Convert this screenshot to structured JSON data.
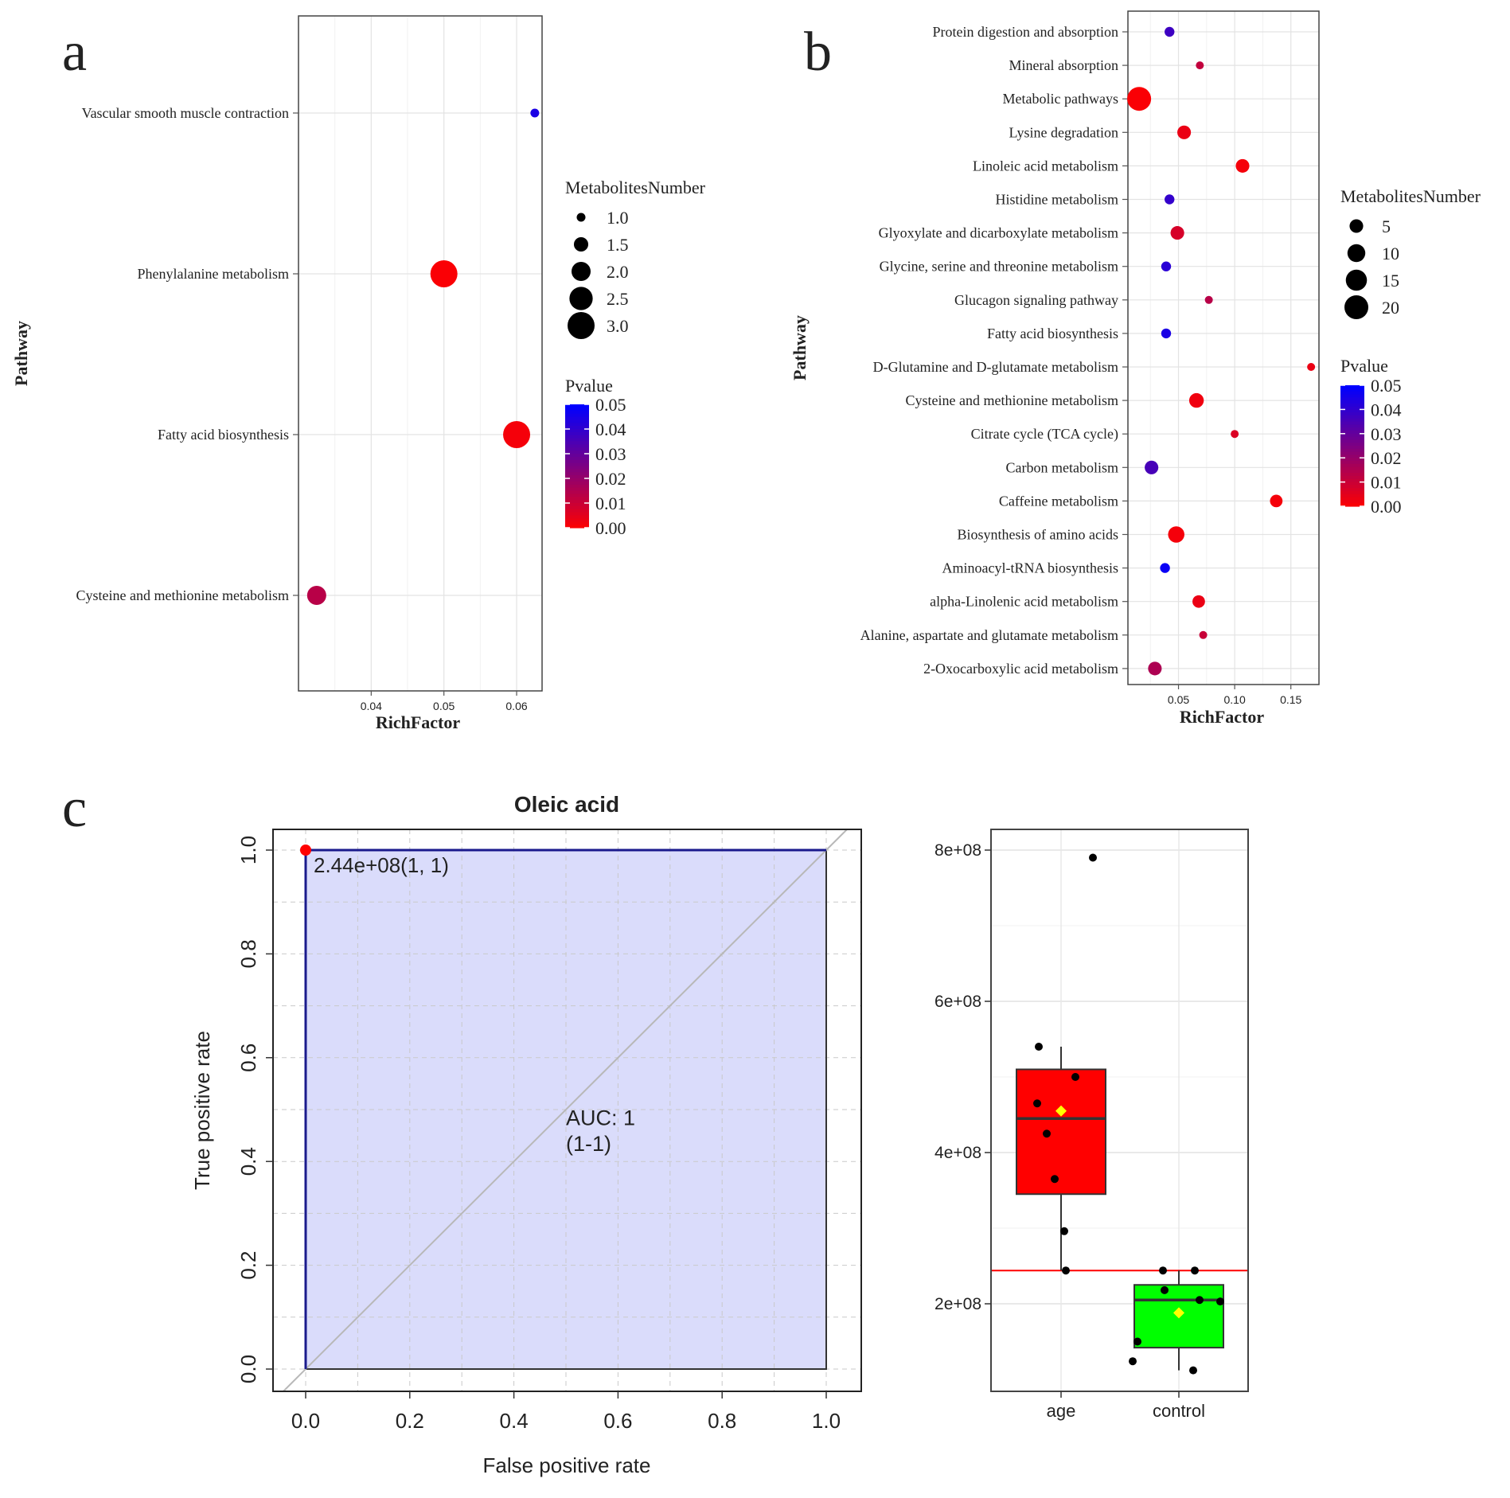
{
  "panel_letters": {
    "a": "a",
    "b": "b",
    "c": "c"
  },
  "chart_data": [
    {
      "id": "panel-a",
      "type": "scatter",
      "title": "",
      "xlabel": "RichFactor",
      "ylabel": "Pathway",
      "xlim": [
        0.03,
        0.0635
      ],
      "xticks": [
        0.04,
        0.05,
        0.06
      ],
      "xtick_labels": [
        "0.04",
        "0.05",
        "0.06"
      ],
      "pathways": [
        "Vascular smooth muscle contraction",
        "Phenylalanine metabolism",
        "Fatty acid biosynthesis",
        "Cysteine and methionine metabolism"
      ],
      "points": [
        {
          "pathway": "Vascular smooth muscle contraction",
          "rich_factor": 0.0625,
          "metabolites": 1,
          "pvalue": 0.045
        },
        {
          "pathway": "Phenylalanine metabolism",
          "rich_factor": 0.05,
          "metabolites": 3,
          "pvalue": 0.001
        },
        {
          "pathway": "Fatty acid biosynthesis",
          "rich_factor": 0.06,
          "metabolites": 3,
          "pvalue": 0.002
        },
        {
          "pathway": "Cysteine and methionine metabolism",
          "rich_factor": 0.0325,
          "metabolites": 2,
          "pvalue": 0.014
        }
      ],
      "size_legend": {
        "title": "MetabolitesNumber",
        "values": [
          1.0,
          1.5,
          2.0,
          2.5,
          3.0
        ],
        "labels": [
          "1.0",
          "1.5",
          "2.0",
          "2.5",
          "3.0"
        ],
        "min": 1,
        "max": 3
      },
      "color_legend": {
        "title": "Pvalue",
        "ticks": [
          0.05,
          0.04,
          0.03,
          0.02,
          0.01,
          0.0
        ],
        "labels": [
          "0.05",
          "0.04",
          "0.03",
          "0.02",
          "0.01",
          "0.00"
        ],
        "low_color": "#ff0000",
        "high_color": "#0000ff",
        "max": 0.05
      }
    },
    {
      "id": "panel-b",
      "type": "scatter",
      "title": "",
      "xlabel": "RichFactor",
      "ylabel": "Pathway",
      "xlim": [
        0.005,
        0.175
      ],
      "xticks": [
        0.05,
        0.1,
        0.15
      ],
      "xtick_labels": [
        "0.05",
        "0.10",
        "0.15"
      ],
      "pathways": [
        "Protein digestion and absorption",
        "Mineral absorption",
        "Metabolic pathways",
        "Lysine degradation",
        "Linoleic acid metabolism",
        "Histidine metabolism",
        "Glyoxylate and dicarboxylate metabolism",
        "Glycine, serine and threonine metabolism",
        "Glucagon signaling pathway",
        "Fatty acid biosynthesis",
        "D-Glutamine and D-glutamate metabolism",
        "Cysteine and methionine metabolism",
        "Citrate cycle (TCA cycle)",
        "Carbon metabolism",
        "Caffeine metabolism",
        "Biosynthesis of amino acids",
        "Aminoacyl-tRNA biosynthesis",
        "alpha-Linolenic acid metabolism",
        "Alanine, aspartate and glutamate metabolism",
        "2-Oxocarboxylic acid metabolism"
      ],
      "points": [
        {
          "pathway": "Protein digestion and absorption",
          "rich_factor": 0.042,
          "metabolites": 2,
          "pvalue": 0.038
        },
        {
          "pathway": "Mineral absorption",
          "rich_factor": 0.069,
          "metabolites": 1,
          "pvalue": 0.012
        },
        {
          "pathway": "Metabolic pathways",
          "rich_factor": 0.015,
          "metabolites": 20,
          "pvalue": 0.001
        },
        {
          "pathway": "Lysine degradation",
          "rich_factor": 0.055,
          "metabolites": 5,
          "pvalue": 0.004
        },
        {
          "pathway": "Linoleic acid metabolism",
          "rich_factor": 0.107,
          "metabolites": 5,
          "pvalue": 0.002
        },
        {
          "pathway": "Histidine metabolism",
          "rich_factor": 0.042,
          "metabolites": 2,
          "pvalue": 0.04
        },
        {
          "pathway": "Glyoxylate and dicarboxylate metabolism",
          "rich_factor": 0.049,
          "metabolites": 5,
          "pvalue": 0.008
        },
        {
          "pathway": "Glycine, serine and threonine metabolism",
          "rich_factor": 0.039,
          "metabolites": 2,
          "pvalue": 0.042
        },
        {
          "pathway": "Glucagon signaling pathway",
          "rich_factor": 0.077,
          "metabolites": 1,
          "pvalue": 0.014
        },
        {
          "pathway": "Fatty acid biosynthesis",
          "rich_factor": 0.039,
          "metabolites": 2,
          "pvalue": 0.045
        },
        {
          "pathway": "D-Glutamine and D-glutamate metabolism",
          "rich_factor": 0.168,
          "metabolites": 1,
          "pvalue": 0.004
        },
        {
          "pathway": "Cysteine and methionine metabolism",
          "rich_factor": 0.066,
          "metabolites": 6,
          "pvalue": 0.003
        },
        {
          "pathway": "Citrate cycle (TCA cycle)",
          "rich_factor": 0.1,
          "metabolites": 1,
          "pvalue": 0.007
        },
        {
          "pathway": "Carbon metabolism",
          "rich_factor": 0.026,
          "metabolites": 5,
          "pvalue": 0.036
        },
        {
          "pathway": "Caffeine metabolism",
          "rich_factor": 0.137,
          "metabolites": 4,
          "pvalue": 0.002
        },
        {
          "pathway": "Biosynthesis of amino acids",
          "rich_factor": 0.048,
          "metabolites": 8,
          "pvalue": 0.002
        },
        {
          "pathway": "Aminoacyl-tRNA biosynthesis",
          "rich_factor": 0.038,
          "metabolites": 2,
          "pvalue": 0.048
        },
        {
          "pathway": "alpha-Linolenic acid metabolism",
          "rich_factor": 0.068,
          "metabolites": 4,
          "pvalue": 0.004
        },
        {
          "pathway": "Alanine, aspartate and glutamate metabolism",
          "rich_factor": 0.072,
          "metabolites": 1,
          "pvalue": 0.011
        },
        {
          "pathway": "2-Oxocarboxylic acid metabolism",
          "rich_factor": 0.029,
          "metabolites": 5,
          "pvalue": 0.016
        }
      ],
      "size_legend": {
        "title": "MetabolitesNumber",
        "values": [
          5,
          10,
          15,
          20
        ],
        "labels": [
          "5",
          "10",
          "15",
          "20"
        ],
        "min": 1,
        "max": 20
      },
      "color_legend": {
        "title": "Pvalue",
        "ticks": [
          0.05,
          0.04,
          0.03,
          0.02,
          0.01,
          0.0
        ],
        "labels": [
          "0.05",
          "0.04",
          "0.03",
          "0.02",
          "0.01",
          "0.00"
        ],
        "low_color": "#ff0000",
        "high_color": "#0000ff",
        "max": 0.05
      }
    },
    {
      "id": "panel-c-roc",
      "type": "line",
      "title": "Oleic acid",
      "xlabel": "False positive rate",
      "ylabel": "True positive rate",
      "xlim": [
        -0.05,
        1.065
      ],
      "ylim": [
        -0.05,
        1.04
      ],
      "xticks": [
        0.0,
        0.2,
        0.4,
        0.6,
        0.8,
        1.0
      ],
      "yticks": [
        0.0,
        0.2,
        0.4,
        0.6,
        0.8,
        1.0
      ],
      "tick_labels": [
        "0.0",
        "0.2",
        "0.4",
        "0.6",
        "0.8",
        "1.0"
      ],
      "series": [
        {
          "name": "ROC",
          "x": [
            0,
            0,
            1
          ],
          "y": [
            0,
            1,
            1
          ]
        }
      ],
      "cutoff_point": {
        "x": 0,
        "y": 1,
        "label": "2.44e+08(1, 1)"
      },
      "auc_text": "AUC: 1",
      "auc_ci_text": "(1-1)",
      "fill_color": "#dadcfb",
      "line_color": "#1a1a8c"
    },
    {
      "id": "panel-c-box",
      "type": "box",
      "title": "",
      "categories": [
        "age",
        "control"
      ],
      "ylim": [
        80000000,
        830000000
      ],
      "yticks": [
        200000000,
        400000000,
        600000000,
        800000000
      ],
      "ytick_labels": [
        "2e+08",
        "4e+08",
        "6e+08",
        "8e+08"
      ],
      "threshold": 244000000,
      "boxes": [
        {
          "name": "age",
          "q1": 345000000,
          "median": 445000000,
          "q3": 510000000,
          "whisker_low": 244000000,
          "whisker_high": 540000000,
          "mean": 455000000,
          "fill": "#ff0000",
          "points": [
            790000000,
            540000000,
            500000000,
            465000000,
            425000000,
            365000000,
            296000000,
            244000000
          ]
        },
        {
          "name": "control",
          "q1": 142000000,
          "median": 205000000,
          "q3": 225000000,
          "whisker_low": 112000000,
          "whisker_high": 244000000,
          "mean": 188000000,
          "fill": "#00ff00",
          "points": [
            244000000,
            244000000,
            218000000,
            205000000,
            203000000,
            150000000,
            124000000,
            112000000
          ]
        }
      ]
    }
  ]
}
